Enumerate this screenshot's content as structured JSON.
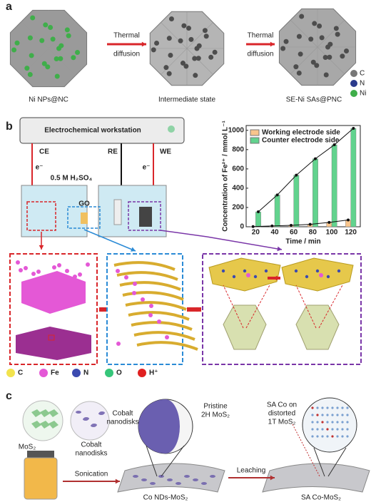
{
  "panels": {
    "a": {
      "label": "a",
      "arrows": [
        {
          "top": "Thermal",
          "bottom": "diffusion"
        },
        {
          "top": "Thermal",
          "bottom": "diffusion"
        }
      ],
      "stages": [
        "Ni NPs@NC",
        "Intermediate state",
        "SE-Ni SAs@PNC"
      ],
      "legend": [
        "C",
        "N",
        "Ni"
      ]
    },
    "b": {
      "label": "b",
      "instrument": "Electrochemical workstation",
      "electrodes": [
        "CE",
        "RE",
        "WE"
      ],
      "electrons": [
        "e⁻",
        "e⁻"
      ],
      "electrolyte": "0.5 M H₂SO₄",
      "membrane": "GO",
      "atom_legend": [
        "C",
        "Fe",
        "N",
        "O",
        "H⁺"
      ]
    },
    "c": {
      "label": "c",
      "materials": [
        "MoS₂",
        [
          "Cobalt",
          "nanodisks"
        ]
      ],
      "steps": [
        "Sonication",
        "Leaching"
      ],
      "callouts": [
        [
          "Cobalt",
          "nanodisks"
        ],
        [
          "Pristine",
          "2H MoS₂"
        ],
        [
          "SA Co on",
          "distorted",
          "1T MoS₂"
        ]
      ],
      "products": [
        "Co NDs-MoS₂",
        "SA Co-MoS₂"
      ]
    }
  },
  "chart_data": {
    "type": "bar",
    "x_label": "Time / min",
    "y_label": "Concentration of Fe²⁺ / mmol L⁻¹",
    "categories": [
      "20",
      "40",
      "60",
      "80",
      "100",
      "120"
    ],
    "series": [
      {
        "name": "Working electrode side",
        "color": "#f8c58c",
        "values": [
          2,
          8,
          15,
          25,
          45,
          70
        ]
      },
      {
        "name": "Counter electrode side",
        "color": "#62d38e",
        "values": [
          155,
          330,
          535,
          705,
          850,
          1020
        ]
      }
    ],
    "ylim": [
      0,
      1050
    ],
    "yticks": [
      0,
      200,
      400,
      600,
      800,
      1000
    ],
    "line_overlay": true,
    "legend": "upper left"
  }
}
